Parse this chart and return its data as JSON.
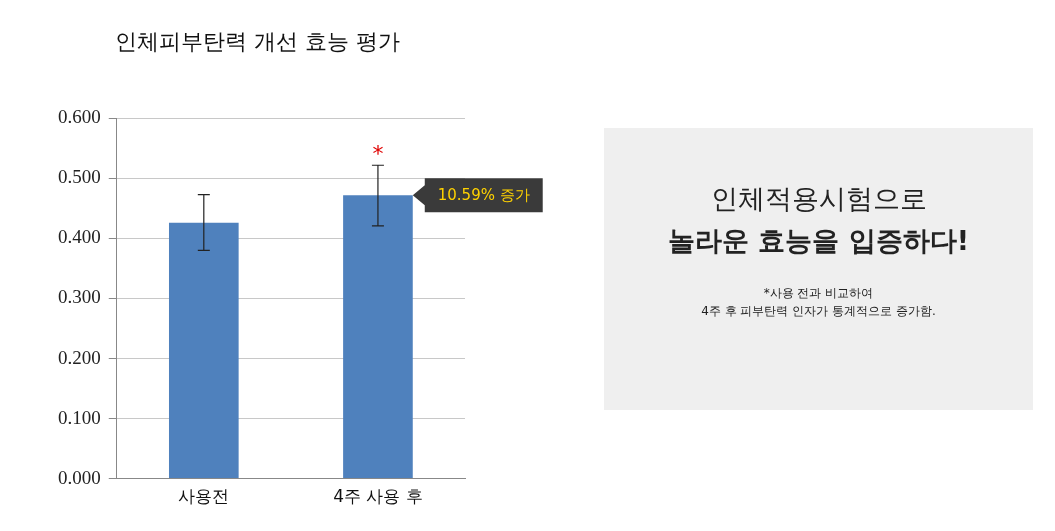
{
  "chart_data": [
    {
      "type": "bar",
      "title": "인체피부탄력 개선 효능 평가",
      "categories": [
        "사용전",
        "4주 사용 후"
      ],
      "values": [
        0.426,
        0.472
      ],
      "color": "#4f81bd",
      "errors": [
        [
          0.38,
          0.473
        ],
        [
          0.421,
          0.522
        ]
      ],
      "ylim": [
        0,
        0.6
      ],
      "yticks": [
        {
          "value": 0,
          "label": "0.000"
        },
        {
          "value": 0.1,
          "label": "0.100"
        },
        {
          "value": 0.2,
          "label": "0.200"
        },
        {
          "value": 0.3,
          "label": "0.300"
        },
        {
          "value": 0.4,
          "label": "0.400"
        },
        {
          "value": 0.5,
          "label": "0.500"
        },
        {
          "value": 0.6,
          "label": "0.600"
        }
      ],
      "grid": "y",
      "legend": false,
      "annotations": [
        "*",
        "10.59% 증가"
      ]
    },
    {
      "type": "other",
      "annotations": [
        "인체적용시험으로",
        "놀라운 효능을 입증하다!",
        "*사용 전과 비교하여",
        "4주 후 피부탄력 인자가 통계적으로 증가함."
      ]
    }
  ]
}
